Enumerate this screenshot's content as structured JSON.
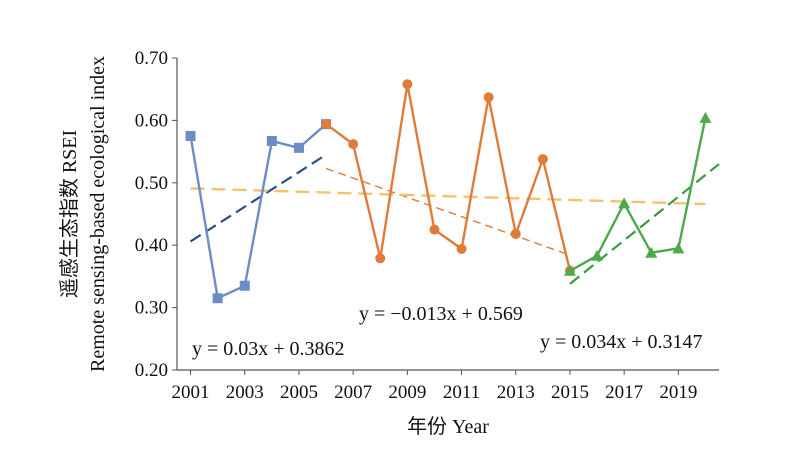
{
  "chart_data": {
    "type": "line",
    "xlabel": "年份 Year",
    "ylabel_line1": "遥感生态指数 RSEI",
    "ylabel_line2": "Remote sensing-based ecological index",
    "ylim": [
      0.2,
      0.7
    ],
    "yticks": [
      "0.20",
      "0.30",
      "0.40",
      "0.50",
      "0.60",
      "0.70"
    ],
    "xlim": [
      2000.5,
      2020.5
    ],
    "xticks": [
      "2001",
      "2003",
      "2005",
      "2007",
      "2009",
      "2011",
      "2013",
      "2015",
      "2017",
      "2019"
    ],
    "grid": false,
    "legend": "none",
    "series": [
      {
        "marker": "square",
        "color": "#6b8cc4",
        "x": [
          2001,
          2002,
          2003,
          2004,
          2005,
          2006
        ],
        "y": [
          0.575,
          0.315,
          0.335,
          0.567,
          0.556,
          0.594
        ]
      },
      {
        "marker": "circle",
        "color": "#e07b39",
        "x": [
          2006,
          2007,
          2008,
          2009,
          2010,
          2011,
          2012,
          2013,
          2014,
          2015
        ],
        "y": [
          0.594,
          0.562,
          0.379,
          0.658,
          0.425,
          0.394,
          0.637,
          0.418,
          0.538,
          0.359
        ]
      },
      {
        "marker": "triangle",
        "color": "#4caa4c",
        "x": [
          2015,
          2016,
          2017,
          2018,
          2019,
          2020
        ],
        "y": [
          0.359,
          0.383,
          0.467,
          0.388,
          0.395,
          0.604
        ]
      }
    ],
    "trendlines": [
      {
        "equation": "y = 0.03x + 0.3862",
        "color": "#2e4d8c",
        "x": [
          2001,
          2006
        ],
        "y": [
          0.406,
          0.545
        ]
      },
      {
        "equation": "y = −0.013x + 0.569",
        "color": "#e07b39",
        "x": [
          2006,
          2015
        ],
        "y": [
          0.523,
          0.384
        ]
      },
      {
        "equation": "y = 0.034x + 0.3147",
        "color": "#3f9a3f",
        "x": [
          2015,
          2020.5
        ],
        "y": [
          0.338,
          0.53
        ]
      },
      {
        "equation": "",
        "color": "#f5c26b",
        "x": [
          2001,
          2020
        ],
        "y": [
          0.491,
          0.466
        ]
      }
    ]
  }
}
